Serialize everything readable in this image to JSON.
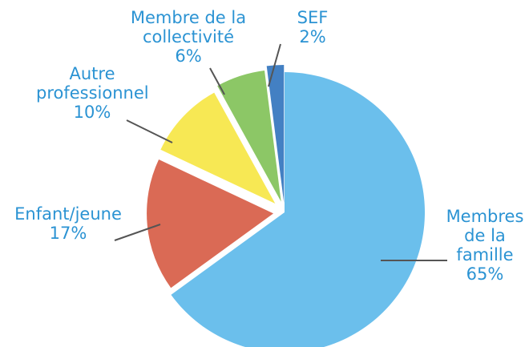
{
  "chart_data": {
    "type": "pie",
    "categories": [
      "Membres de la famille",
      "Enfant/jeune",
      "Autre professionnel",
      "Membre de la collectivité",
      "SEF"
    ],
    "values": [
      65,
      17,
      10,
      6,
      2
    ],
    "value_labels": [
      "65%",
      "17%",
      "10%",
      "6%",
      "2%"
    ],
    "colors": [
      "#5bb8ea",
      "#d65a43",
      "#f6e641",
      "#80c155",
      "#2f72bd"
    ]
  }
}
